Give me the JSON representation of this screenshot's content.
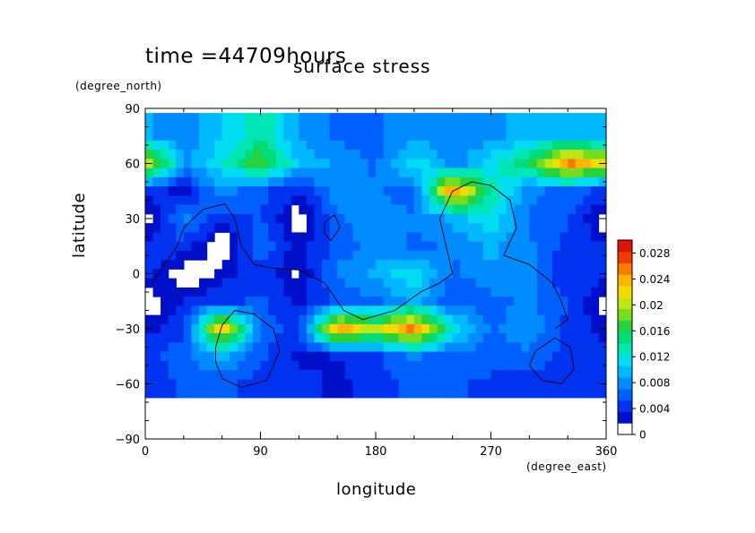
{
  "chart_data": {
    "type": "heatmap",
    "title": "surface stress",
    "time_label": "time =44709hours",
    "xlabel": "longitude",
    "ylabel": "latitude",
    "x_unit": "(degree_east)",
    "y_unit": "(degree_north)",
    "xlim": [
      0,
      360
    ],
    "ylim": [
      -90,
      90
    ],
    "x_ticks": [
      "0",
      "90",
      "180",
      "270",
      "360"
    ],
    "y_ticks": [
      "90",
      "60",
      "30",
      "0",
      "−30",
      "−60",
      "−90"
    ],
    "colorbar": {
      "ticks": [
        "0.028",
        "0.024",
        "0.02",
        "0.016",
        "0.012",
        "0.008",
        "0.004",
        "0"
      ],
      "range": [
        0,
        0.03
      ],
      "colors": [
        "#ffffff",
        "#0010c8",
        "#0033f0",
        "#0060ff",
        "#008cff",
        "#00b8ff",
        "#00dcf0",
        "#00e6b4",
        "#00dc78",
        "#28d23c",
        "#78dc1e",
        "#bee614",
        "#f0dc00",
        "#ffb400",
        "#ff7800",
        "#f03c00",
        "#dc1400"
      ]
    },
    "grid": false,
    "legend": "colorbar right",
    "stress_field": {
      "lon": [
        0,
        30,
        60,
        90,
        120,
        150,
        180,
        210,
        240,
        270,
        300,
        330,
        360
      ],
      "lat": [
        75,
        60,
        45,
        30,
        15,
        0,
        -15,
        -30,
        -45,
        -60
      ],
      "values": [
        [
          0.009,
          0.007,
          0.01,
          0.014,
          0.008,
          0.006,
          0.006,
          0.008,
          0.007,
          0.008,
          0.009,
          0.01,
          0.009
        ],
        [
          0.022,
          0.008,
          0.012,
          0.018,
          0.01,
          0.008,
          0.006,
          0.012,
          0.007,
          0.011,
          0.016,
          0.026,
          0.022
        ],
        [
          0.004,
          0.002,
          0.008,
          0.005,
          0.003,
          0.008,
          0.007,
          0.005,
          0.026,
          0.014,
          0.007,
          0.006,
          0.004
        ],
        [
          0.0,
          0.007,
          0.003,
          0.005,
          0.0,
          0.006,
          0.008,
          0.007,
          0.009,
          0.012,
          0.006,
          0.005,
          0.0
        ],
        [
          0.003,
          0.004,
          0.0,
          0.006,
          0.002,
          0.005,
          0.008,
          0.006,
          0.007,
          0.009,
          0.007,
          0.004,
          0.003
        ],
        [
          0.004,
          0.0,
          0.002,
          0.004,
          0.001,
          0.007,
          0.009,
          0.012,
          0.006,
          0.008,
          0.007,
          0.003,
          0.004
        ],
        [
          0.0,
          0.003,
          0.004,
          0.005,
          0.002,
          0.005,
          0.006,
          0.009,
          0.005,
          0.006,
          0.007,
          0.005,
          0.0
        ],
        [
          0.002,
          0.004,
          0.024,
          0.006,
          0.004,
          0.025,
          0.02,
          0.026,
          0.012,
          0.006,
          0.008,
          0.004,
          0.002
        ],
        [
          0.004,
          0.006,
          0.009,
          0.005,
          0.002,
          0.003,
          0.004,
          0.007,
          0.005,
          0.006,
          0.006,
          0.004,
          0.004
        ],
        [
          0.003,
          0.005,
          0.005,
          0.004,
          0.004,
          0.002,
          0.004,
          0.005,
          0.005,
          0.004,
          0.004,
          0.004,
          0.003
        ]
      ]
    },
    "coastlines": [
      {
        "name": "",
        "points": [
          [
            5,
            -5
          ],
          [
            15,
            5
          ],
          [
            25,
            15
          ],
          [
            30,
            25
          ],
          [
            45,
            35
          ],
          [
            62,
            38
          ],
          [
            70,
            30
          ],
          [
            75,
            15
          ],
          [
            85,
            5
          ],
          [
            100,
            3
          ],
          [
            120,
            2
          ],
          [
            140,
            -5
          ],
          [
            155,
            -20
          ],
          [
            170,
            -25
          ],
          [
            195,
            -20
          ],
          [
            215,
            -10
          ],
          [
            230,
            -5
          ],
          [
            240,
            0
          ],
          [
            235,
            15
          ],
          [
            230,
            30
          ],
          [
            240,
            45
          ],
          [
            255,
            50
          ],
          [
            270,
            48
          ],
          [
            285,
            40
          ],
          [
            290,
            25
          ],
          [
            280,
            10
          ],
          [
            300,
            5
          ],
          [
            318,
            -5
          ],
          [
            325,
            -15
          ],
          [
            330,
            -25
          ],
          [
            320,
            -30
          ]
        ]
      },
      {
        "name": "",
        "points": [
          [
            55,
            -40
          ],
          [
            60,
            -28
          ],
          [
            70,
            -20
          ],
          [
            85,
            -22
          ],
          [
            100,
            -30
          ],
          [
            105,
            -42
          ],
          [
            95,
            -58
          ],
          [
            75,
            -62
          ],
          [
            60,
            -57
          ],
          [
            55,
            -48
          ],
          [
            55,
            -40
          ]
        ]
      },
      {
        "name": "",
        "points": [
          [
            305,
            -42
          ],
          [
            320,
            -35
          ],
          [
            332,
            -40
          ],
          [
            335,
            -52
          ],
          [
            325,
            -60
          ],
          [
            310,
            -58
          ],
          [
            300,
            -50
          ],
          [
            305,
            -42
          ]
        ]
      },
      {
        "name": "",
        "points": [
          [
            140,
            28
          ],
          [
            148,
            32
          ],
          [
            152,
            25
          ],
          [
            145,
            18
          ],
          [
            140,
            22
          ],
          [
            140,
            28
          ]
        ]
      }
    ]
  }
}
